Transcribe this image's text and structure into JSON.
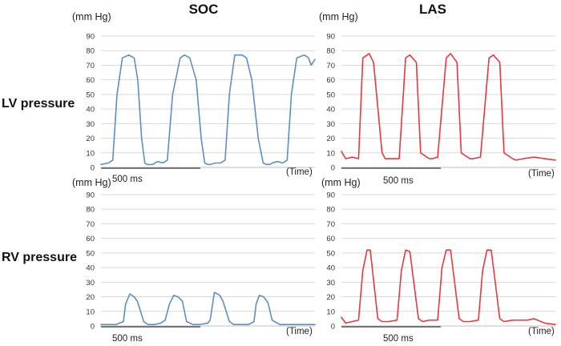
{
  "column_titles": [
    "SOC",
    "LAS"
  ],
  "row_titles": [
    "LV pressure",
    "RV pressure"
  ],
  "colors": {
    "SOC": "#5b8fc7",
    "LAS": "#e8383d"
  },
  "chart_data": [
    {
      "id": "lv-soc",
      "type": "line",
      "ylabel": "(mm Hg)",
      "xlabel": "(Time)",
      "ylim": [
        0,
        90
      ],
      "yticks": [
        0,
        10,
        20,
        30,
        40,
        50,
        60,
        70,
        80,
        90
      ],
      "scale_bar": "500 ms",
      "color": "#5b8fc7",
      "x": [
        0,
        0.035,
        0.055,
        0.075,
        0.1,
        0.13,
        0.155,
        0.172,
        0.19,
        0.205,
        0.215,
        0.24,
        0.265,
        0.29,
        0.31,
        0.335,
        0.37,
        0.39,
        0.415,
        0.445,
        0.468,
        0.485,
        0.5,
        0.51,
        0.535,
        0.56,
        0.58,
        0.6,
        0.625,
        0.66,
        0.68,
        0.705,
        0.735,
        0.758,
        0.775,
        0.79,
        0.8,
        0.825,
        0.85,
        0.87,
        0.89,
        0.915,
        0.95,
        0.97,
        0.982,
        1.0
      ],
      "y": [
        2,
        3,
        5,
        50,
        75,
        77,
        75,
        60,
        20,
        3,
        2,
        2,
        4,
        3,
        5,
        50,
        75,
        77,
        75,
        60,
        20,
        3,
        2,
        2,
        3,
        3,
        5,
        50,
        77,
        77,
        75,
        60,
        20,
        3,
        2,
        2,
        3,
        4,
        3,
        5,
        50,
        75,
        77,
        75,
        70,
        74
      ]
    },
    {
      "id": "lv-las",
      "type": "line",
      "ylabel": "(mm Hg)",
      "xlabel": "(Time)",
      "ylim": [
        0,
        90
      ],
      "yticks": [
        0,
        10,
        20,
        30,
        40,
        50,
        60,
        70,
        80,
        90
      ],
      "scale_bar": "500 ms",
      "color": "#e8383d",
      "x": [
        0,
        0.02,
        0.05,
        0.08,
        0.1,
        0.13,
        0.15,
        0.19,
        0.205,
        0.23,
        0.27,
        0.3,
        0.32,
        0.35,
        0.37,
        0.41,
        0.425,
        0.45,
        0.49,
        0.51,
        0.54,
        0.56,
        0.6,
        0.615,
        0.65,
        0.69,
        0.71,
        0.74,
        0.76,
        0.8,
        0.815,
        0.85,
        0.9,
        1.0
      ],
      "y": [
        11,
        6,
        7,
        6,
        75,
        78,
        72,
        10,
        6,
        6,
        6,
        75,
        77,
        72,
        10,
        6,
        6,
        7,
        75,
        78,
        72,
        10,
        6,
        6,
        7,
        75,
        77,
        72,
        10,
        6,
        5,
        6,
        7,
        5
      ]
    },
    {
      "id": "rv-soc",
      "type": "line",
      "ylabel": "(mm Hg)",
      "xlabel": "(Time)",
      "ylim": [
        0,
        90
      ],
      "yticks": [
        0,
        10,
        20,
        30,
        40,
        50,
        60,
        70,
        80,
        90
      ],
      "scale_bar": "500 ms",
      "color": "#5b8fc7",
      "x": [
        0,
        0.03,
        0.07,
        0.105,
        0.115,
        0.135,
        0.155,
        0.17,
        0.2,
        0.22,
        0.25,
        0.28,
        0.3,
        0.32,
        0.34,
        0.36,
        0.38,
        0.4,
        0.43,
        0.46,
        0.5,
        0.51,
        0.53,
        0.555,
        0.57,
        0.6,
        0.62,
        0.66,
        0.69,
        0.715,
        0.725,
        0.74,
        0.76,
        0.78,
        0.8,
        0.835,
        0.9,
        1.0
      ],
      "y": [
        1,
        1,
        1,
        3,
        15,
        22,
        20,
        17,
        3,
        1,
        1,
        2,
        4,
        15,
        21,
        20,
        17,
        3,
        1,
        1,
        2,
        4,
        23,
        21,
        17,
        3,
        1,
        1,
        1,
        3,
        15,
        21,
        20,
        16,
        4,
        1,
        1,
        1
      ]
    },
    {
      "id": "rv-las",
      "type": "line",
      "ylabel": "(mm Hg)",
      "xlabel": "(Time)",
      "ylim": [
        0,
        90
      ],
      "yticks": [
        0,
        10,
        20,
        30,
        40,
        50,
        60,
        70,
        80,
        90
      ],
      "scale_bar": "500 ms",
      "color": "#e8383d",
      "x": [
        0,
        0.02,
        0.05,
        0.08,
        0.1,
        0.12,
        0.135,
        0.17,
        0.19,
        0.22,
        0.26,
        0.28,
        0.3,
        0.32,
        0.36,
        0.38,
        0.41,
        0.45,
        0.47,
        0.49,
        0.51,
        0.55,
        0.57,
        0.6,
        0.64,
        0.66,
        0.68,
        0.7,
        0.74,
        0.76,
        0.8,
        0.87,
        0.9,
        0.95,
        1.0
      ],
      "y": [
        6,
        2,
        3,
        4,
        38,
        52,
        52,
        5,
        3,
        3,
        4,
        38,
        52,
        51,
        5,
        3,
        4,
        4,
        40,
        52,
        52,
        5,
        3,
        3,
        4,
        38,
        52,
        52,
        5,
        3,
        4,
        4,
        5,
        2,
        1
      ]
    }
  ]
}
